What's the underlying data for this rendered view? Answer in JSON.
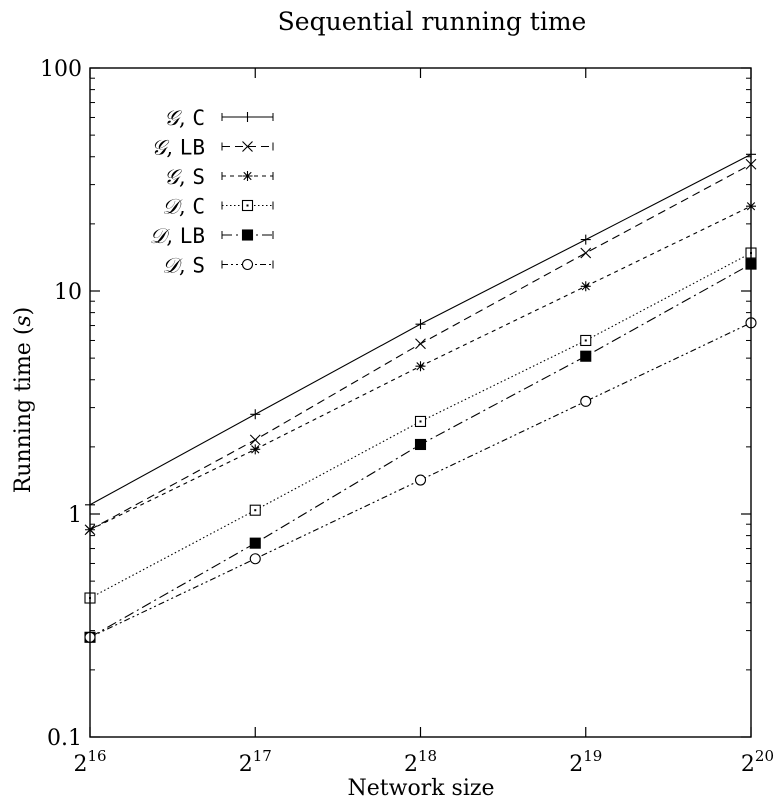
{
  "chart_data": {
    "type": "line",
    "title": "Sequential running time",
    "xlabel": "Network size",
    "ylabel_text": "Running time (",
    "ylabel_unit": "s",
    "ylabel_close": ")",
    "yscale": "log",
    "ylim": [
      0.1,
      100
    ],
    "yticks": [
      {
        "value": 0.1,
        "label": "0.1"
      },
      {
        "value": 1,
        "label": "1"
      },
      {
        "value": 10,
        "label": "10"
      },
      {
        "value": 100,
        "label": "100"
      }
    ],
    "xlim": [
      16,
      20
    ],
    "xticks": [
      {
        "value": 16,
        "base": "2",
        "exp": "16"
      },
      {
        "value": 17,
        "base": "2",
        "exp": "17"
      },
      {
        "value": 18,
        "base": "2",
        "exp": "18"
      },
      {
        "value": 19,
        "base": "2",
        "exp": "19"
      },
      {
        "value": 20,
        "base": "2",
        "exp": "20"
      }
    ],
    "x": [
      16,
      17,
      18,
      19,
      20
    ],
    "legend_position": "top-left",
    "series": [
      {
        "name_set": "𝒢",
        "name_sep": ", ",
        "name_algo": "C",
        "marker": "plus",
        "dash": "",
        "values": [
          1.1,
          2.8,
          7.1,
          17,
          41
        ]
      },
      {
        "name_set": "𝒢",
        "name_sep": ", ",
        "name_algo": "LB",
        "marker": "cross",
        "dash": "8,5",
        "values": [
          0.85,
          2.15,
          5.8,
          14.8,
          37
        ]
      },
      {
        "name_set": "𝒢",
        "name_sep": ", ",
        "name_algo": "S",
        "marker": "star",
        "dash": "4,4",
        "values": [
          0.85,
          1.95,
          4.6,
          10.5,
          24
        ]
      },
      {
        "name_set": "𝒟",
        "name_sep": ", ",
        "name_algo": "C",
        "marker": "square",
        "dash": "1.5,2.5",
        "values": [
          0.42,
          1.04,
          2.6,
          6.0,
          14.8
        ]
      },
      {
        "name_set": "𝒟",
        "name_sep": ", ",
        "name_algo": "LB",
        "marker": "filledsquare",
        "dash": "10,4,2,4",
        "values": [
          0.28,
          0.74,
          2.05,
          5.1,
          13.2
        ]
      },
      {
        "name_set": "𝒟",
        "name_sep": ", ",
        "name_algo": "S",
        "marker": "circle",
        "dash": "6,3,2,3,2,3",
        "values": [
          0.28,
          0.63,
          1.42,
          3.2,
          7.2
        ]
      }
    ]
  }
}
